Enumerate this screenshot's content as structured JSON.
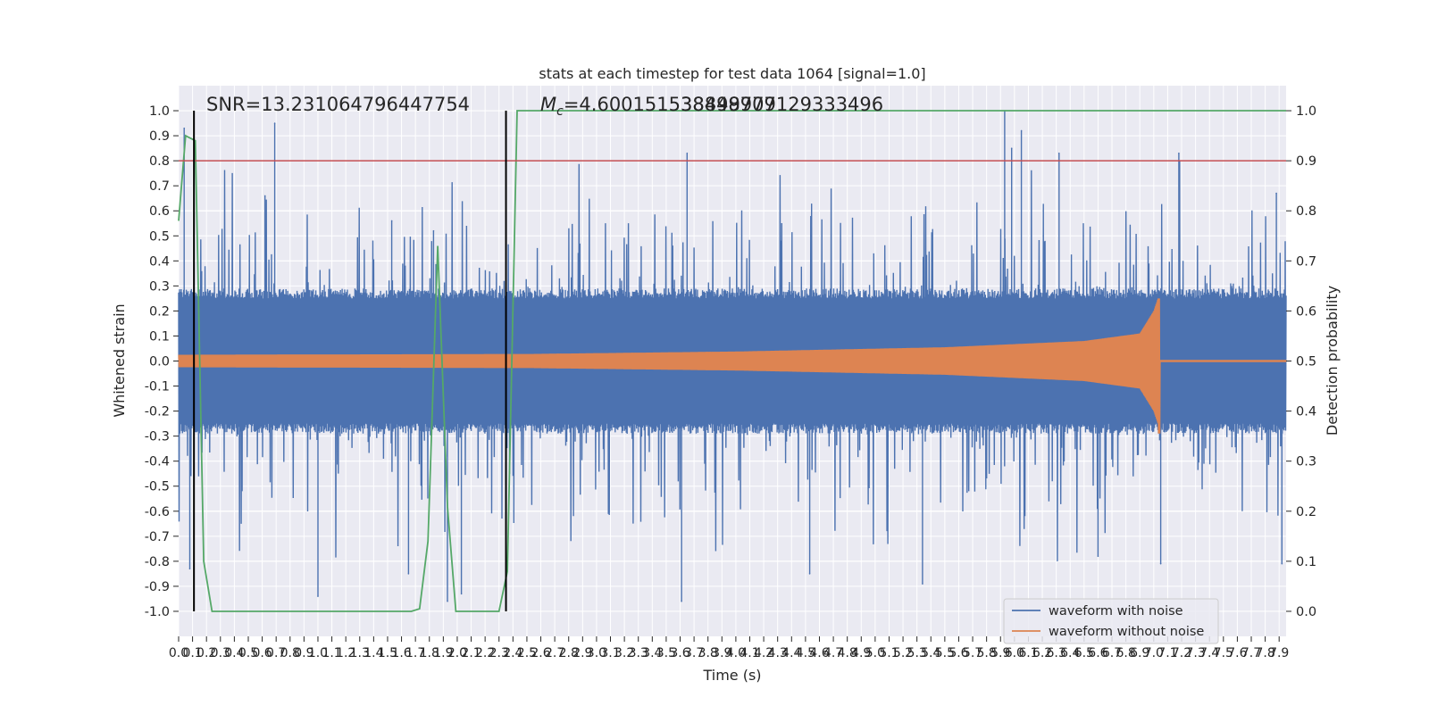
{
  "chart_data": {
    "type": "line",
    "title": "stats at each timestep for test data 1064 [signal=1.0]",
    "xlabel": "Time (s)",
    "ylabel": "Whitened strain",
    "ylabel_right": "Detection probability",
    "xlim": [
      0.0,
      7.95
    ],
    "ylim": [
      -1.1,
      1.1
    ],
    "ylim_right": [
      -0.05,
      1.05
    ],
    "x_ticks": [
      0.0,
      0.1,
      0.2,
      0.3,
      0.4,
      0.5,
      0.6,
      0.7,
      0.8,
      0.9,
      1.0,
      1.1,
      1.2,
      1.3,
      1.4,
      1.5,
      1.6,
      1.7,
      1.8,
      1.9,
      2.0,
      2.1,
      2.2,
      2.3,
      2.4,
      2.5,
      2.6,
      2.7,
      2.8,
      2.9,
      3.0,
      3.1,
      3.2,
      3.3,
      3.4,
      3.5,
      3.6,
      3.7,
      3.8,
      3.9,
      4.0,
      4.1,
      4.2,
      4.3,
      4.4,
      4.5,
      4.6,
      4.7,
      4.8,
      4.9,
      5.0,
      5.1,
      5.2,
      5.3,
      5.4,
      5.5,
      5.6,
      5.7,
      5.8,
      5.9,
      6.0,
      6.1,
      6.2,
      6.3,
      6.4,
      6.5,
      6.6,
      6.7,
      6.8,
      6.9,
      7.0,
      7.1,
      7.2,
      7.3,
      7.4,
      7.5,
      7.6,
      7.7,
      7.8,
      7.9
    ],
    "y_ticks": [
      -1.0,
      -0.9,
      -0.8,
      -0.7,
      -0.6,
      -0.5,
      -0.4,
      -0.3,
      -0.2,
      -0.1,
      0.0,
      0.1,
      0.2,
      0.3,
      0.4,
      0.5,
      0.6,
      0.7,
      0.8,
      0.9,
      1.0
    ],
    "y_ticks_right": [
      0.0,
      0.1,
      0.2,
      0.3,
      0.4,
      0.5,
      0.6,
      0.7,
      0.8,
      0.9,
      1.0
    ],
    "grid": true,
    "colors": {
      "noise": "#4c72b0",
      "clean": "#dd8452",
      "probability": "#55a868",
      "threshold": "#c44e52",
      "markers": "#000000",
      "axes_bg": "#eaeaf2",
      "grid": "#ffffff"
    },
    "annotations": {
      "snr": "SNR=13.231064796447754",
      "mc_label": "M",
      "mc_sub": "c",
      "mc_value": "=4.600151538498977",
      "mc_overlap": "38849709129333496"
    },
    "threshold_right": 0.9,
    "vertical_lines_x": [
      0.11,
      2.35
    ],
    "series": [
      {
        "name": "waveform with noise",
        "axis": "left",
        "peaks": [
          {
            "x": 0.04,
            "y": 0.93
          },
          {
            "x": 0.69,
            "y": 0.95
          },
          {
            "x": 0.62,
            "y": 0.66
          },
          {
            "x": 1.53,
            "y": 0.56
          },
          {
            "x": 1.83,
            "y": 0.52
          },
          {
            "x": 3.65,
            "y": 0.83
          },
          {
            "x": 5.93,
            "y": 1.0
          },
          {
            "x": 5.98,
            "y": 0.85
          },
          {
            "x": 6.05,
            "y": 0.92
          },
          {
            "x": 6.32,
            "y": 0.83
          },
          {
            "x": 7.18,
            "y": 0.83
          },
          {
            "x": 7.88,
            "y": 0.67
          }
        ],
        "troughs": [
          {
            "x": 0.08,
            "y": -0.83
          },
          {
            "x": 1.0,
            "y": -0.94
          },
          {
            "x": 1.65,
            "y": -0.85
          },
          {
            "x": 1.93,
            "y": -0.96
          },
          {
            "x": 2.03,
            "y": -0.93
          },
          {
            "x": 3.61,
            "y": -0.96
          },
          {
            "x": 4.53,
            "y": -0.85
          },
          {
            "x": 5.34,
            "y": -0.89
          },
          {
            "x": 6.6,
            "y": -0.78
          },
          {
            "x": 7.05,
            "y": -0.81
          },
          {
            "x": 7.92,
            "y": -0.81
          }
        ],
        "baseline_amplitude": 0.25
      },
      {
        "name": "waveform without noise",
        "axis": "left",
        "envelope": [
          {
            "x": 0.0,
            "y": 0.025
          },
          {
            "x": 2.5,
            "y": 0.028
          },
          {
            "x": 4.0,
            "y": 0.038
          },
          {
            "x": 5.5,
            "y": 0.055
          },
          {
            "x": 6.5,
            "y": 0.08
          },
          {
            "x": 6.9,
            "y": 0.11
          },
          {
            "x": 7.0,
            "y": 0.2
          },
          {
            "x": 7.03,
            "y": 0.25
          },
          {
            "x": 7.04,
            "y": -0.29
          },
          {
            "x": 7.05,
            "y": 0.0
          },
          {
            "x": 7.95,
            "y": 0.0
          }
        ]
      },
      {
        "name": "Detection probability",
        "axis": "right",
        "points": [
          {
            "x": 0.0,
            "y": 0.78
          },
          {
            "x": 0.05,
            "y": 0.95
          },
          {
            "x": 0.12,
            "y": 0.94
          },
          {
            "x": 0.18,
            "y": 0.1
          },
          {
            "x": 0.24,
            "y": 0.0
          },
          {
            "x": 1.67,
            "y": 0.0
          },
          {
            "x": 1.73,
            "y": 0.005
          },
          {
            "x": 1.79,
            "y": 0.14
          },
          {
            "x": 1.86,
            "y": 0.73
          },
          {
            "x": 1.93,
            "y": 0.21
          },
          {
            "x": 1.99,
            "y": 0.0
          },
          {
            "x": 2.3,
            "y": 0.0
          },
          {
            "x": 2.36,
            "y": 0.08
          },
          {
            "x": 2.43,
            "y": 1.0
          },
          {
            "x": 7.95,
            "y": 1.0
          }
        ]
      }
    ]
  },
  "legend": {
    "items": [
      "waveform with noise",
      "waveform without noise"
    ]
  }
}
